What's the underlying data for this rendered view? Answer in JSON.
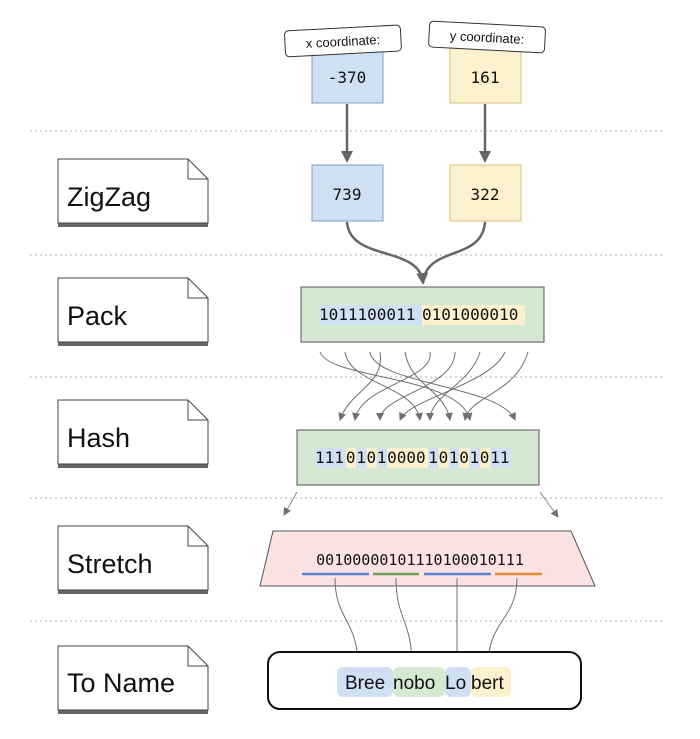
{
  "colors": {
    "blue": "#cfe0f3",
    "yellow": "#fdf0cc",
    "green": "#d5e9d2",
    "pink": "#fbe3e3",
    "arrow": "#707070",
    "divider": "#b0b0b0",
    "underline_blue": "#5b7fd1",
    "underline_green": "#6ea05a",
    "underline_orange": "#e08a3a"
  },
  "stages": [
    {
      "label": "ZigZag"
    },
    {
      "label": "Pack"
    },
    {
      "label": "Hash"
    },
    {
      "label": "Stretch"
    },
    {
      "label": "To Name"
    }
  ],
  "inputs": {
    "x": {
      "caption": "x coordinate:",
      "value": "-370"
    },
    "y": {
      "caption": "y coordinate:",
      "value": "161"
    }
  },
  "zigzag": {
    "x": "739",
    "y": "322"
  },
  "pack": {
    "segments": [
      {
        "bits": "1011100011",
        "tone": "blue"
      },
      {
        "bits": "0101000010",
        "tone": "yellow"
      }
    ]
  },
  "hash": {
    "segments": [
      {
        "bits": "111",
        "tone": "blue"
      },
      {
        "bits": "0",
        "tone": "yellow"
      },
      {
        "bits": "1",
        "tone": "blue"
      },
      {
        "bits": "0",
        "tone": "yellow"
      },
      {
        "bits": "1",
        "tone": "blue"
      },
      {
        "bits": "0000",
        "tone": "yellow"
      },
      {
        "bits": "1",
        "tone": "blue"
      },
      {
        "bits": "0",
        "tone": "yellow"
      },
      {
        "bits": "1",
        "tone": "blue"
      },
      {
        "bits": "0",
        "tone": "yellow"
      },
      {
        "bits": "1",
        "tone": "blue"
      },
      {
        "bits": "0",
        "tone": "yellow"
      },
      {
        "bits": "11",
        "tone": "blue"
      }
    ]
  },
  "stretch": {
    "bits": "00100000101110100010111"
  },
  "name": {
    "syllables": [
      {
        "text": "Bree",
        "tone": "blue"
      },
      {
        "text": "nobo",
        "tone": "green"
      },
      {
        "text": "Lo",
        "tone": "blue"
      },
      {
        "text": "bert",
        "tone": "yellow"
      }
    ]
  }
}
